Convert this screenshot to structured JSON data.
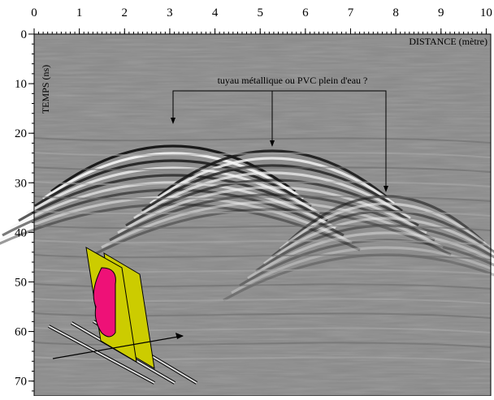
{
  "figure": {
    "x_axis": {
      "label": "DISTANCE (mètre)",
      "lim": [
        0,
        10.1
      ],
      "ticks": [
        0,
        1,
        2,
        3,
        4,
        5,
        6,
        7,
        8,
        9,
        10
      ]
    },
    "y_axis": {
      "label": "TEMPS (ns)",
      "lim": [
        0,
        73
      ],
      "ticks": [
        0,
        10,
        20,
        30,
        40,
        50,
        60,
        70
      ]
    },
    "annotation": "tuyau métallique ou PVC plein d'eau ?"
  }
}
